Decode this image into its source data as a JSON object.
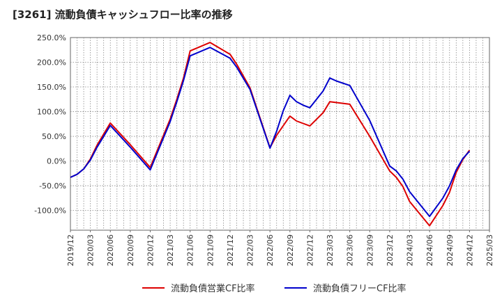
{
  "chart_data": {
    "type": "line",
    "title": "[3261]  流動負債キャッシュフロー比率の推移",
    "xlabel": "",
    "ylabel": "",
    "ylim": [
      -140,
      250
    ],
    "yticks": [
      {
        "value": 250,
        "label": "250.0%"
      },
      {
        "value": 200,
        "label": "200.0%"
      },
      {
        "value": 150,
        "label": "150.0%"
      },
      {
        "value": 100,
        "label": "100.0%"
      },
      {
        "value": 50,
        "label": "50.0%"
      },
      {
        "value": 0,
        "label": "0.0%"
      },
      {
        "value": -50,
        "label": "-50.0%"
      },
      {
        "value": -100,
        "label": "-100.0%"
      }
    ],
    "xticks": [
      "2019/12",
      "2020/03",
      "2020/06",
      "2020/09",
      "2020/12",
      "2021/03",
      "2021/06",
      "2021/09",
      "2021/12",
      "2022/03",
      "2022/06",
      "2022/09",
      "2022/12",
      "2023/03",
      "2023/06",
      "2023/09",
      "2023/12",
      "2024/03",
      "2024/06",
      "2024/09",
      "2024/12",
      "2025/03"
    ],
    "grid": true,
    "legend_position": "bottom",
    "series": [
      {
        "name": "流動負債営業CF比率",
        "color": "#dd0000",
        "points": [
          {
            "x": "2019/12",
            "y": -33
          },
          {
            "x": "2020/01",
            "y": -27
          },
          {
            "x": "2020/02",
            "y": -16
          },
          {
            "x": "2020/03",
            "y": 4
          },
          {
            "x": "2020/04",
            "y": 32
          },
          {
            "x": "2020/06",
            "y": 77
          },
          {
            "x": "2020/09",
            "y": 33
          },
          {
            "x": "2020/12",
            "y": -13
          },
          {
            "x": "2021/03",
            "y": 85
          },
          {
            "x": "2021/04",
            "y": 125
          },
          {
            "x": "2021/05",
            "y": 168
          },
          {
            "x": "2021/06",
            "y": 223
          },
          {
            "x": "2021/09",
            "y": 240
          },
          {
            "x": "2021/12",
            "y": 216
          },
          {
            "x": "2022/01",
            "y": 196
          },
          {
            "x": "2022/03",
            "y": 148
          },
          {
            "x": "2022/06",
            "y": 27
          },
          {
            "x": "2022/07",
            "y": 52
          },
          {
            "x": "2022/09",
            "y": 91
          },
          {
            "x": "2022/10",
            "y": 81
          },
          {
            "x": "2022/12",
            "y": 71
          },
          {
            "x": "2023/02",
            "y": 98
          },
          {
            "x": "2023/03",
            "y": 120
          },
          {
            "x": "2023/06",
            "y": 115
          },
          {
            "x": "2023/09",
            "y": 50
          },
          {
            "x": "2023/12",
            "y": -20
          },
          {
            "x": "2024/01",
            "y": -33
          },
          {
            "x": "2024/02",
            "y": -52
          },
          {
            "x": "2024/03",
            "y": -82
          },
          {
            "x": "2024/06",
            "y": -131
          },
          {
            "x": "2024/08",
            "y": -90
          },
          {
            "x": "2024/09",
            "y": -63
          },
          {
            "x": "2024/10",
            "y": -23
          },
          {
            "x": "2024/11",
            "y": 3
          },
          {
            "x": "2024/12",
            "y": 22
          }
        ]
      },
      {
        "name": "流動負債フリーCF比率",
        "color": "#0000cc",
        "points": [
          {
            "x": "2019/12",
            "y": -33
          },
          {
            "x": "2020/01",
            "y": -27
          },
          {
            "x": "2020/02",
            "y": -16
          },
          {
            "x": "2020/03",
            "y": 2
          },
          {
            "x": "2020/04",
            "y": 28
          },
          {
            "x": "2020/06",
            "y": 72
          },
          {
            "x": "2020/09",
            "y": 28
          },
          {
            "x": "2020/12",
            "y": -18
          },
          {
            "x": "2021/03",
            "y": 80
          },
          {
            "x": "2021/04",
            "y": 120
          },
          {
            "x": "2021/05",
            "y": 163
          },
          {
            "x": "2021/06",
            "y": 213
          },
          {
            "x": "2021/09",
            "y": 230
          },
          {
            "x": "2021/12",
            "y": 208
          },
          {
            "x": "2022/01",
            "y": 190
          },
          {
            "x": "2022/03",
            "y": 145
          },
          {
            "x": "2022/06",
            "y": 26
          },
          {
            "x": "2022/07",
            "y": 60
          },
          {
            "x": "2022/08",
            "y": 102
          },
          {
            "x": "2022/09",
            "y": 133
          },
          {
            "x": "2022/10",
            "y": 120
          },
          {
            "x": "2022/11",
            "y": 113
          },
          {
            "x": "2022/12",
            "y": 108
          },
          {
            "x": "2023/02",
            "y": 142
          },
          {
            "x": "2023/03",
            "y": 168
          },
          {
            "x": "2023/04",
            "y": 162
          },
          {
            "x": "2023/06",
            "y": 153
          },
          {
            "x": "2023/09",
            "y": 82
          },
          {
            "x": "2023/12",
            "y": -10
          },
          {
            "x": "2024/01",
            "y": -20
          },
          {
            "x": "2024/02",
            "y": -37
          },
          {
            "x": "2024/03",
            "y": -62
          },
          {
            "x": "2024/06",
            "y": -112
          },
          {
            "x": "2024/08",
            "y": -75
          },
          {
            "x": "2024/09",
            "y": -50
          },
          {
            "x": "2024/10",
            "y": -18
          },
          {
            "x": "2024/11",
            "y": 5
          },
          {
            "x": "2024/12",
            "y": 20
          }
        ]
      }
    ]
  }
}
